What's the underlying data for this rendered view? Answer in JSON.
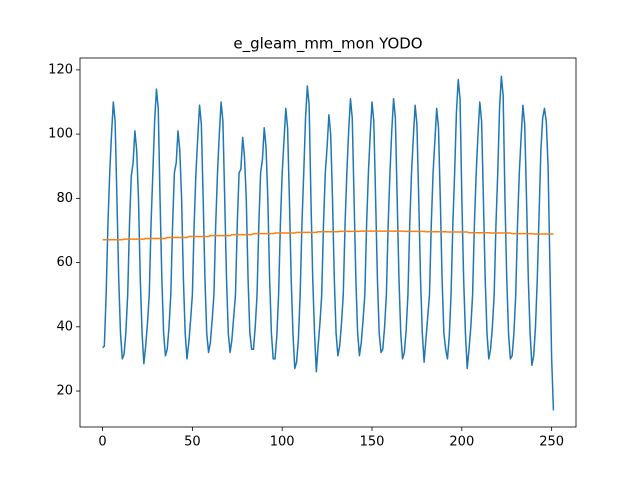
{
  "chart_data": {
    "type": "line",
    "title": "e_gleam_mm_mon YODO",
    "x": [
      0,
      1,
      2,
      3,
      4,
      5,
      6,
      7,
      8,
      9,
      10,
      11,
      12,
      13,
      14,
      15,
      16,
      17,
      18,
      19,
      20,
      21,
      22,
      23,
      24,
      25,
      26,
      27,
      28,
      29,
      30,
      31,
      32,
      33,
      34,
      35,
      36,
      37,
      38,
      39,
      40,
      41,
      42,
      43,
      44,
      45,
      46,
      47,
      48,
      49,
      50,
      51,
      52,
      53,
      54,
      55,
      56,
      57,
      58,
      59,
      60,
      61,
      62,
      63,
      64,
      65,
      66,
      67,
      68,
      69,
      70,
      71,
      72,
      73,
      74,
      75,
      76,
      77,
      78,
      79,
      80,
      81,
      82,
      83,
      84,
      85,
      86,
      87,
      88,
      89,
      90,
      91,
      92,
      93,
      94,
      95,
      96,
      97,
      98,
      99,
      100,
      101,
      102,
      103,
      104,
      105,
      106,
      107,
      108,
      109,
      110,
      111,
      112,
      113,
      114,
      115,
      116,
      117,
      118,
      119,
      120,
      121,
      122,
      123,
      124,
      125,
      126,
      127,
      128,
      129,
      130,
      131,
      132,
      133,
      134,
      135,
      136,
      137,
      138,
      139,
      140,
      141,
      142,
      143,
      144,
      145,
      146,
      147,
      148,
      149,
      150,
      151,
      152,
      153,
      154,
      155,
      156,
      157,
      158,
      159,
      160,
      161,
      162,
      163,
      164,
      165,
      166,
      167,
      168,
      169,
      170,
      171,
      172,
      173,
      174,
      175,
      176,
      177,
      178,
      179,
      180,
      181,
      182,
      183,
      184,
      185,
      186,
      187,
      188,
      189,
      190,
      191,
      192,
      193,
      194,
      195,
      196,
      197,
      198,
      199,
      200,
      201,
      202,
      203,
      204,
      205,
      206,
      207,
      208,
      209,
      210,
      211,
      212,
      213,
      214,
      215,
      216,
      217,
      218,
      219,
      220,
      221,
      222,
      223,
      224,
      225,
      226,
      227,
      228,
      229,
      230,
      231,
      232,
      233,
      234,
      235,
      236,
      237,
      238,
      239,
      240,
      241,
      242,
      243,
      244,
      245,
      246,
      247,
      248,
      249,
      250,
      251
    ],
    "series": [
      {
        "color": "#1f77b4",
        "values": [
          33.5,
          34,
          50,
          72,
          88,
          100,
          110,
          104,
          80,
          55,
          38,
          30,
          31.5,
          38.5,
          50,
          72,
          87,
          91,
          101,
          95,
          80,
          55,
          38,
          28.5,
          34,
          41,
          50,
          72,
          88,
          104,
          114,
          108,
          80,
          55,
          38,
          31,
          33,
          40,
          50,
          72,
          88,
          91,
          101,
          95,
          80,
          55,
          38,
          30,
          35,
          42,
          50,
          72,
          88,
          99,
          109,
          103,
          80,
          55,
          38,
          32,
          35,
          42,
          50,
          72,
          88,
          100,
          110,
          104,
          80,
          55,
          38,
          32,
          36,
          43,
          50,
          72,
          88,
          89,
          99,
          93,
          80,
          55,
          38,
          33,
          33,
          40,
          50,
          72,
          88,
          92,
          102,
          96,
          80,
          55,
          38,
          30,
          30,
          37,
          50,
          72,
          88,
          98,
          108,
          102,
          80,
          55,
          38,
          27,
          29,
          36,
          50,
          72,
          88,
          105,
          115,
          109,
          80,
          55,
          38,
          26,
          34,
          41,
          50,
          72,
          88,
          96,
          106,
          100,
          80,
          55,
          38,
          31,
          34,
          41,
          50,
          72,
          88,
          101,
          111,
          105,
          80,
          55,
          38,
          31,
          35,
          42,
          50,
          72,
          88,
          100,
          110,
          104,
          80,
          55,
          38,
          32,
          33,
          40,
          50,
          72,
          88,
          101,
          111,
          105,
          80,
          55,
          38,
          30,
          32,
          39,
          50,
          72,
          88,
          99,
          109,
          103,
          80,
          55,
          38,
          29,
          36,
          43,
          50,
          72,
          88,
          98,
          108,
          102,
          80,
          55,
          38,
          33,
          30,
          37,
          50,
          72,
          88,
          107,
          117,
          111,
          80,
          55,
          38,
          27,
          33,
          40,
          50,
          72,
          88,
          100,
          110,
          104,
          80,
          55,
          38,
          30,
          33,
          40,
          50,
          72,
          88,
          108,
          118,
          112,
          80,
          55,
          38,
          30,
          31,
          38,
          50,
          72,
          88,
          99,
          109,
          103,
          80,
          55,
          38,
          28,
          31,
          40,
          55,
          75,
          95,
          105,
          108,
          104,
          90,
          60,
          30,
          14
        ]
      },
      {
        "color": "#ff7f0e",
        "values": [
          67.1,
          67.1,
          67.1,
          67.1,
          67.1,
          67.1,
          67.1,
          67.1,
          67.1,
          67.1,
          67.1,
          67.1,
          67.3,
          67.3,
          67.3,
          67.3,
          67.3,
          67.3,
          67.3,
          67.3,
          67.3,
          67.3,
          67.3,
          67.3,
          67.5,
          67.5,
          67.5,
          67.5,
          67.5,
          67.5,
          67.5,
          67.5,
          67.5,
          67.5,
          67.5,
          67.5,
          67.8,
          67.8,
          67.8,
          67.8,
          67.8,
          67.8,
          67.8,
          67.8,
          67.8,
          67.8,
          67.8,
          67.8,
          68.1,
          68.1,
          68.1,
          68.1,
          68.1,
          68.1,
          68.1,
          68.1,
          68.1,
          68.1,
          68.1,
          68.1,
          68.4,
          68.4,
          68.4,
          68.4,
          68.4,
          68.4,
          68.4,
          68.4,
          68.4,
          68.4,
          68.4,
          68.4,
          68.7,
          68.7,
          68.7,
          68.7,
          68.7,
          68.7,
          68.7,
          68.7,
          68.7,
          68.7,
          68.7,
          68.7,
          69.0,
          69.0,
          69.0,
          69.0,
          69.0,
          69.0,
          69.0,
          69.0,
          69.0,
          69.0,
          69.0,
          69.0,
          69.2,
          69.2,
          69.2,
          69.2,
          69.2,
          69.2,
          69.2,
          69.2,
          69.2,
          69.2,
          69.2,
          69.2,
          69.4,
          69.4,
          69.4,
          69.4,
          69.4,
          69.4,
          69.4,
          69.4,
          69.4,
          69.4,
          69.4,
          69.4,
          69.6,
          69.6,
          69.6,
          69.6,
          69.6,
          69.6,
          69.6,
          69.6,
          69.6,
          69.6,
          69.6,
          69.6,
          69.7,
          69.7,
          69.7,
          69.7,
          69.7,
          69.7,
          69.7,
          69.7,
          69.7,
          69.7,
          69.7,
          69.7,
          69.8,
          69.8,
          69.8,
          69.8,
          69.8,
          69.8,
          69.8,
          69.8,
          69.8,
          69.8,
          69.8,
          69.8,
          69.8,
          69.8,
          69.8,
          69.8,
          69.8,
          69.8,
          69.8,
          69.8,
          69.8,
          69.8,
          69.8,
          69.8,
          69.7,
          69.7,
          69.7,
          69.7,
          69.7,
          69.7,
          69.7,
          69.7,
          69.7,
          69.7,
          69.7,
          69.7,
          69.6,
          69.6,
          69.6,
          69.6,
          69.6,
          69.6,
          69.6,
          69.6,
          69.6,
          69.6,
          69.6,
          69.6,
          69.5,
          69.5,
          69.5,
          69.5,
          69.5,
          69.5,
          69.5,
          69.5,
          69.5,
          69.5,
          69.5,
          69.5,
          69.3,
          69.3,
          69.3,
          69.3,
          69.3,
          69.3,
          69.3,
          69.3,
          69.3,
          69.3,
          69.3,
          69.3,
          69.2,
          69.2,
          69.2,
          69.2,
          69.2,
          69.2,
          69.2,
          69.2,
          69.2,
          69.2,
          69.2,
          69.2,
          69.0,
          69.0,
          69.0,
          69.0,
          69.0,
          69.0,
          69.0,
          69.0,
          69.0,
          69.0,
          69.0,
          69.0,
          68.9,
          68.9,
          68.9,
          68.9,
          68.9,
          68.9,
          68.9,
          68.9,
          68.9,
          68.9,
          68.9,
          68.9
        ]
      }
    ],
    "xlim": [
      -12.55,
      263.55
    ],
    "xticks": [
      0,
      50,
      100,
      150,
      200,
      250
    ],
    "ylim": [
      8.8,
      123.7
    ],
    "yticks": [
      20,
      40,
      60,
      80,
      100,
      120
    ]
  }
}
